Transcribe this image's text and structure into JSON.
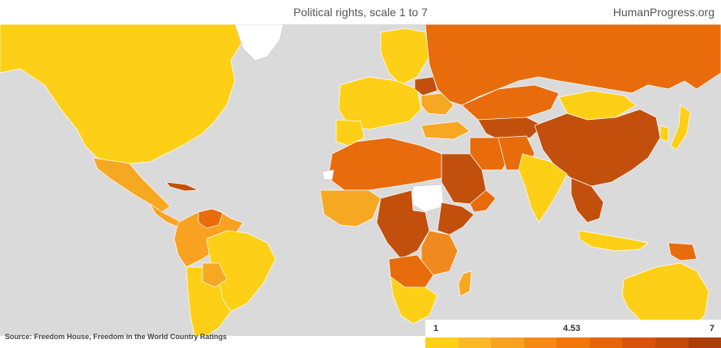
{
  "header": {
    "title": "Political rights, scale 1 to 7",
    "brand": "HumanProgress.org"
  },
  "source": "Source: Freedom House, Freedom in the World Country Ratings",
  "legend": {
    "min_label": "1",
    "mid_label": "4.53",
    "max_label": "7",
    "colors": [
      "#fdd017",
      "#fbb829",
      "#f9a120",
      "#f78a14",
      "#f3760b",
      "#e8640a",
      "#d9540a",
      "#c44a0b",
      "#a93e0a"
    ]
  },
  "colors": {
    "ocean": "#dadada",
    "free": "#fdd017",
    "partly_free": "#f7a823",
    "mid": "#f08a1e",
    "not_free": "#e86c0c",
    "worst": "#c2500c",
    "no_data": "#ffffff"
  }
}
